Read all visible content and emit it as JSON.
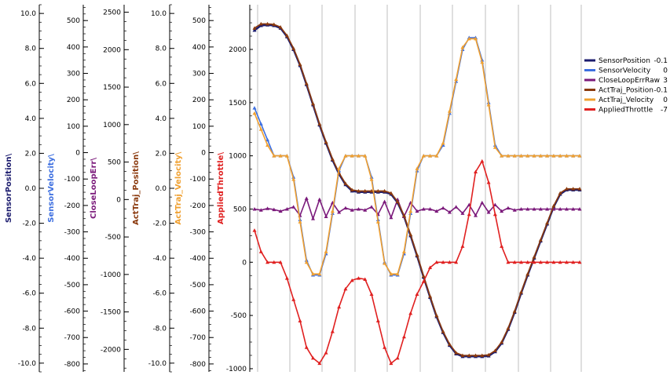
{
  "chart_data": {
    "type": "line",
    "x": [
      0,
      0.02,
      0.04,
      0.06,
      0.08,
      0.1,
      0.12,
      0.14,
      0.16,
      0.18,
      0.2,
      0.22,
      0.24,
      0.26,
      0.28,
      0.3,
      0.32,
      0.34,
      0.36,
      0.38,
      0.4,
      0.42,
      0.44,
      0.46,
      0.48,
      0.5,
      0.52,
      0.54,
      0.56,
      0.58,
      0.6,
      0.62,
      0.64,
      0.66,
      0.68,
      0.7,
      0.72,
      0.74,
      0.76,
      0.78,
      0.8,
      0.82,
      0.84,
      0.86,
      0.88,
      0.9,
      0.92,
      0.94,
      0.96,
      0.98,
      1.0
    ],
    "axes": [
      {
        "id": "sensor_position",
        "label": "SensorPosition\\",
        "color": "#1c1c6e",
        "ylim": [
          -10.5,
          10.5
        ],
        "ticks": [
          "10.0",
          "8.0",
          "6.0",
          "4.0",
          "2.0",
          "0.0",
          "-2.0",
          "-4.0",
          "-6.0",
          "-8.0",
          "-10.0"
        ],
        "tick_values": [
          10,
          8,
          6,
          4,
          2,
          0,
          -2,
          -4,
          -6,
          -8,
          -10
        ]
      },
      {
        "id": "sensor_velocity",
        "label": "SensorVelocity\\",
        "color": "#3d6fe0",
        "ylim": [
          -830,
          560
        ],
        "ticks": [
          "500",
          "400",
          "300",
          "200",
          "100",
          "0",
          "-100",
          "-200",
          "-300",
          "-400",
          "-500",
          "-600",
          "-700",
          "-800"
        ],
        "tick_values": [
          500,
          400,
          300,
          200,
          100,
          0,
          -100,
          -200,
          -300,
          -400,
          -500,
          -600,
          -700,
          -800
        ]
      },
      {
        "id": "close_loop_err",
        "label": "CloseLoopErr\\",
        "color": "#7b1a7b",
        "ylim": [
          -2300,
          2600
        ],
        "ticks": [
          "2500",
          "2000",
          "1500",
          "1000",
          "500",
          "0",
          "-500",
          "-1000",
          "-1500",
          "-2000"
        ],
        "tick_values": [
          2500,
          2000,
          1500,
          1000,
          500,
          0,
          -500,
          -1000,
          -1500,
          -2000
        ]
      },
      {
        "id": "act_traj_position",
        "label": "ActTraj_Position\\",
        "color": "#8b3a0e",
        "ylim": [
          -10.5,
          10.5
        ],
        "ticks": [
          "10.0",
          "8.0",
          "6.0",
          "4.0",
          "2.0",
          "0.0",
          "-2.0",
          "-4.0",
          "-6.0",
          "-8.0",
          "-10.0"
        ],
        "tick_values": [
          10,
          8,
          6,
          4,
          2,
          0,
          -2,
          -4,
          -6,
          -8,
          -10
        ]
      },
      {
        "id": "act_traj_velocity",
        "label": "ActTraj_Velocity\\",
        "color": "#f0a030",
        "ylim": [
          -830,
          560
        ],
        "ticks": [
          "500",
          "400",
          "300",
          "200",
          "100",
          "0",
          "-100",
          "-200",
          "-300",
          "-400",
          "-500",
          "-600",
          "-700",
          "-800"
        ],
        "tick_values": [
          500,
          400,
          300,
          200,
          100,
          0,
          -100,
          -200,
          -300,
          -400,
          -500,
          -600,
          -700,
          -800
        ]
      },
      {
        "id": "applied_throttle",
        "label": "AppliedThrottle\\",
        "color": "#e02020",
        "ylim": [
          -1030,
          2420
        ],
        "ticks": [
          "2000",
          "1500",
          "1000",
          "500",
          "0",
          "-500",
          "-1000"
        ],
        "tick_values": [
          2000,
          1500,
          1000,
          500,
          0,
          -500,
          -1000
        ]
      }
    ],
    "series": [
      {
        "name": "SensorPosition",
        "value": "-0.1",
        "color": "#1c1c6e",
        "axis": "applied_throttle",
        "values": [
          2180,
          2225,
          2230,
          2225,
          2200,
          2120,
          2000,
          1850,
          1670,
          1480,
          1290,
          1120,
          960,
          830,
          730,
          670,
          660,
          660,
          660,
          660,
          660,
          640,
          560,
          430,
          250,
          60,
          -140,
          -330,
          -510,
          -660,
          -780,
          -860,
          -885,
          -885,
          -885,
          -885,
          -880,
          -840,
          -760,
          -630,
          -470,
          -290,
          -120,
          40,
          200,
          360,
          520,
          640,
          680,
          680,
          680
        ]
      },
      {
        "name": "SensorVelocity",
        "value": "0",
        "color": "#3d6fe0",
        "axis": "applied_throttle",
        "values": [
          1450,
          1300,
          1150,
          1000,
          1000,
          1000,
          800,
          400,
          20,
          -120,
          -120,
          80,
          460,
          860,
          1000,
          1000,
          1000,
          1000,
          800,
          400,
          0,
          -120,
          -120,
          80,
          460,
          860,
          1000,
          1000,
          1000,
          1100,
          1400,
          1700,
          2000,
          2110,
          2110,
          1900,
          1500,
          1100,
          1000,
          1000,
          1000,
          1000,
          1000,
          1000,
          1000,
          1000,
          1000,
          1000,
          1000,
          1000,
          1000
        ]
      },
      {
        "name": "CloseLoopErrRaw",
        "value": "3",
        "color": "#7b1a7b",
        "axis": "applied_throttle",
        "values": [
          500,
          490,
          505,
          495,
          480,
          500,
          520,
          440,
          600,
          410,
          590,
          430,
          560,
          470,
          510,
          490,
          500,
          490,
          520,
          450,
          570,
          420,
          590,
          430,
          560,
          480,
          500,
          500,
          480,
          510,
          470,
          520,
          460,
          540,
          440,
          560,
          470,
          540,
          480,
          510,
          490,
          500,
          500,
          500,
          500,
          500,
          500,
          500,
          500,
          500,
          500
        ]
      },
      {
        "name": "ActTraj_Position",
        "value": "-0.1",
        "color": "#8b3a0e",
        "axis": "applied_throttle",
        "values": [
          2200,
          2240,
          2240,
          2235,
          2210,
          2130,
          2010,
          1860,
          1680,
          1490,
          1300,
          1130,
          970,
          840,
          740,
          680,
          670,
          670,
          670,
          670,
          670,
          650,
          570,
          440,
          260,
          70,
          -130,
          -320,
          -500,
          -650,
          -770,
          -850,
          -875,
          -875,
          -875,
          -875,
          -870,
          -830,
          -750,
          -620,
          -460,
          -280,
          -110,
          50,
          210,
          370,
          530,
          650,
          690,
          690,
          690
        ]
      },
      {
        "name": "ActTraj_Velocity",
        "value": "0",
        "color": "#f0a030",
        "axis": "applied_throttle",
        "values": [
          1400,
          1250,
          1100,
          1000,
          1000,
          1000,
          780,
          380,
          0,
          -110,
          -110,
          100,
          480,
          880,
          1000,
          1000,
          1000,
          1000,
          780,
          380,
          -10,
          -110,
          -110,
          100,
          480,
          880,
          1000,
          1000,
          1000,
          1120,
          1420,
          1720,
          2020,
          2100,
          2100,
          1880,
          1480,
          1080,
          1000,
          1000,
          1000,
          1000,
          1000,
          1000,
          1000,
          1000,
          1000,
          1000,
          1000,
          1000,
          1000
        ]
      },
      {
        "name": "AppliedThrottle",
        "value": "-7",
        "color": "#e02020",
        "axis": "applied_throttle",
        "values": [
          300,
          100,
          0,
          0,
          0,
          -150,
          -350,
          -550,
          -800,
          -900,
          -950,
          -850,
          -650,
          -420,
          -250,
          -170,
          -150,
          -160,
          -300,
          -550,
          -800,
          -950,
          -900,
          -700,
          -480,
          -300,
          -180,
          -50,
          0,
          0,
          0,
          0,
          150,
          450,
          850,
          950,
          750,
          450,
          150,
          0,
          0,
          0,
          0,
          0,
          0,
          0,
          0,
          0,
          0,
          0,
          0
        ]
      }
    ],
    "legend": "right",
    "grid": true
  }
}
